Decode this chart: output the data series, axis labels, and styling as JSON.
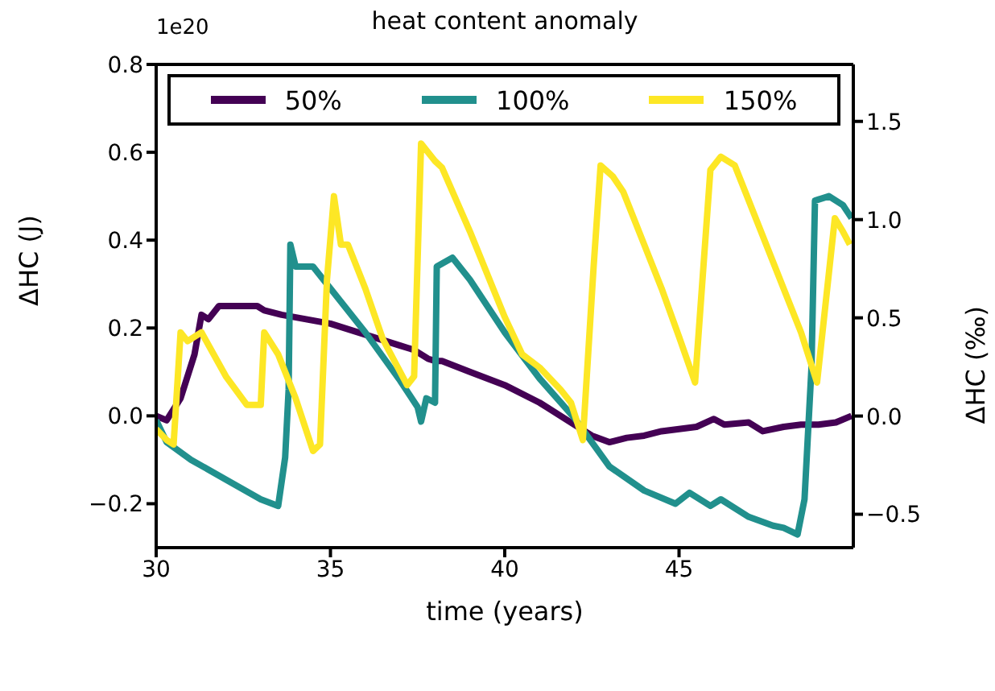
{
  "chart_data": {
    "type": "line",
    "title": "heat content anomaly",
    "xlabel": "time (years)",
    "ylabel": "ΔHC (J)",
    "y2label": "ΔHC (‰)",
    "annotations": [
      "1e20"
    ],
    "xlim": [
      30,
      50
    ],
    "xticks": [
      30,
      35,
      40,
      45
    ],
    "ylim": [
      -0.3,
      0.8
    ],
    "yticks": [
      {
        "value": -0.2,
        "label": "−0.2"
      },
      {
        "value": 0,
        "label": "0.0"
      },
      0.2,
      0.4,
      0.6,
      0.8
    ],
    "y2lim": [
      -0.67,
      1.79
    ],
    "y2ticks": [
      {
        "value": -0.5,
        "label": "−0.5"
      },
      {
        "value": 0,
        "label": "0.0"
      },
      0.5,
      {
        "value": 1,
        "label": "1.0"
      },
      1.5
    ],
    "legend": "top",
    "marker": "none",
    "line_style": "solid",
    "series": [
      {
        "name": "50%",
        "color": "#440154",
        "x": [
          30,
          30.3,
          30.7,
          31.1,
          31.3,
          31.5,
          31.8,
          32.4,
          32.9,
          33.1,
          33.6,
          35,
          37,
          37.4,
          37.8,
          38,
          38.2,
          39,
          40,
          41,
          42,
          42.5,
          43,
          43.5,
          44,
          44.5,
          45,
          45.5,
          46,
          46.3,
          47,
          47.4,
          48,
          48.5,
          49,
          49.5,
          49.95
        ],
        "values": [
          0,
          -0.01,
          0.04,
          0.14,
          0.23,
          0.22,
          0.25,
          0.25,
          0.25,
          0.24,
          0.23,
          0.21,
          0.16,
          0.15,
          0.13,
          0.125,
          0.125,
          0.1,
          0.07,
          0.03,
          -0.02,
          -0.045,
          -0.06,
          -0.05,
          -0.045,
          -0.035,
          -0.03,
          -0.025,
          -0.007,
          -0.02,
          -0.015,
          -0.035,
          -0.025,
          -0.02,
          -0.02,
          -0.015,
          0
        ]
      },
      {
        "name": "100%",
        "color": "#21908d",
        "x": [
          30,
          30.3,
          31,
          32,
          33,
          33.5,
          33.7,
          33.8,
          33.85,
          34,
          34.5,
          35,
          36,
          37,
          37.5,
          37.6,
          37.75,
          38,
          38.05,
          38.5,
          39,
          40,
          41,
          42,
          43,
          44,
          44.9,
          45.3,
          45.9,
          46.2,
          47,
          47.7,
          48,
          48.4,
          48.6,
          48.8,
          48.9,
          49.3,
          49.7,
          49.95
        ],
        "values": [
          -0.01,
          -0.06,
          -0.1,
          -0.145,
          -0.19,
          -0.205,
          -0.095,
          0.06,
          0.39,
          0.34,
          0.34,
          0.29,
          0.19,
          0.08,
          0.02,
          -0.013,
          0.04,
          0.03,
          0.34,
          0.36,
          0.31,
          0.19,
          0.085,
          -0.005,
          -0.115,
          -0.17,
          -0.2,
          -0.175,
          -0.205,
          -0.19,
          -0.23,
          -0.25,
          -0.255,
          -0.27,
          -0.19,
          0.11,
          0.49,
          0.5,
          0.48,
          0.45
        ]
      },
      {
        "name": "150%",
        "color": "#fde725",
        "x": [
          30,
          30.3,
          30.5,
          30.7,
          30.9,
          31.3,
          32,
          32.6,
          33,
          33.1,
          33.5,
          34,
          34.5,
          34.7,
          34.9,
          35.1,
          35.3,
          35.5,
          36,
          36.5,
          37.2,
          37.4,
          37.6,
          38,
          38.2,
          39,
          40,
          40.5,
          41,
          41.6,
          41.9,
          42.24,
          42.55,
          42.75,
          43.1,
          43.4,
          44,
          44.5,
          45,
          45.46,
          45.9,
          46.2,
          46.6,
          47,
          48,
          48.5,
          48.96,
          49.47,
          49.7,
          49.9
        ],
        "values": [
          -0.03,
          -0.055,
          -0.065,
          0.19,
          0.17,
          0.19,
          0.09,
          0.025,
          0.025,
          0.19,
          0.14,
          0.04,
          -0.08,
          -0.065,
          0.31,
          0.5,
          0.39,
          0.39,
          0.29,
          0.175,
          0.07,
          0.09,
          0.62,
          0.58,
          0.565,
          0.42,
          0.225,
          0.14,
          0.11,
          0.06,
          0.03,
          -0.055,
          0.34,
          0.57,
          0.545,
          0.51,
          0.39,
          0.29,
          0.18,
          0.076,
          0.56,
          0.59,
          0.57,
          0.49,
          0.29,
          0.19,
          0.076,
          0.45,
          0.42,
          0.39
        ]
      }
    ]
  }
}
